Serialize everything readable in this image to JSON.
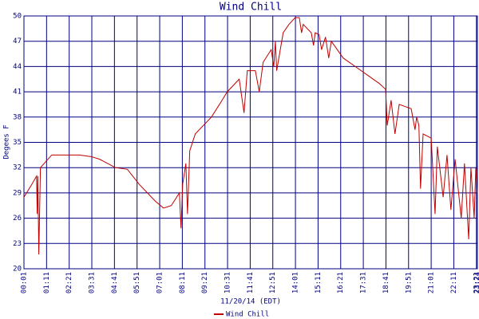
{
  "chart_data": {
    "type": "line",
    "title": "Wind Chill",
    "x_label": "11/20/14 (EDT)",
    "y_label": "Degees F",
    "xlim": [
      "00:01",
      "23:24"
    ],
    "xticks": [
      "00:01",
      "01:11",
      "02:21",
      "03:31",
      "04:41",
      "05:51",
      "07:01",
      "08:11",
      "09:21",
      "10:31",
      "11:41",
      "12:51",
      "14:01",
      "15:11",
      "16:21",
      "17:31",
      "18:41",
      "19:51",
      "21:01",
      "22:11",
      "23:21",
      "23:24"
    ],
    "ylim": [
      20,
      50
    ],
    "yticks": [
      20,
      23,
      26,
      29,
      32,
      35,
      38,
      41,
      44,
      47,
      50
    ],
    "grid": true,
    "legend": "bottom",
    "x": [
      "00:01",
      "00:25",
      "00:40",
      "00:42",
      "00:44",
      "00:47",
      "00:52",
      "01:27",
      "02:53",
      "03:30",
      "03:55",
      "04:44",
      "05:21",
      "05:58",
      "06:23",
      "06:48",
      "07:13",
      "07:37",
      "08:02",
      "08:07",
      "08:12",
      "08:22",
      "08:27",
      "08:34",
      "08:51",
      "09:16",
      "09:41",
      "10:06",
      "10:30",
      "11:07",
      "11:22",
      "11:32",
      "11:57",
      "12:09",
      "12:21",
      "12:46",
      "12:54",
      "12:59",
      "13:03",
      "13:23",
      "13:41",
      "14:00",
      "14:13",
      "14:20",
      "14:25",
      "14:50",
      "14:57",
      "15:02",
      "15:14",
      "15:22",
      "15:34",
      "15:44",
      "15:52",
      "16:29",
      "17:06",
      "17:43",
      "18:20",
      "18:40",
      "18:45",
      "18:57",
      "19:09",
      "19:22",
      "19:59",
      "20:11",
      "20:16",
      "20:23",
      "20:28",
      "20:36",
      "21:01",
      "21:13",
      "21:20",
      "21:38",
      "21:50",
      "22:02",
      "22:15",
      "22:34",
      "22:44",
      "22:57",
      "23:04",
      "23:14",
      "23:19",
      "23:24"
    ],
    "series": [
      {
        "name": "Wind Chill",
        "color": "#c00000",
        "values": [
          28.5,
          30,
          31,
          26.5,
          31,
          21.7,
          32,
          33.5,
          33.5,
          33.3,
          33,
          32,
          31.8,
          30,
          29,
          28,
          27.2,
          27.5,
          29,
          24.8,
          30,
          32.5,
          26.5,
          34,
          36,
          37,
          38,
          39.5,
          41,
          42.5,
          38.5,
          43.5,
          43.5,
          41,
          44.5,
          46,
          44,
          47,
          43.5,
          48,
          49,
          49.8,
          49.8,
          48,
          49,
          48,
          46.5,
          48,
          47.8,
          46,
          47.5,
          45,
          47,
          45,
          44,
          43,
          42,
          41.3,
          37,
          40,
          36,
          39.5,
          39,
          36.5,
          38,
          37,
          29.5,
          36,
          35.5,
          26.5,
          34.5,
          28.5,
          33.5,
          27,
          33,
          26,
          32.5,
          23.5,
          32,
          26,
          32,
          29
        ]
      }
    ]
  }
}
